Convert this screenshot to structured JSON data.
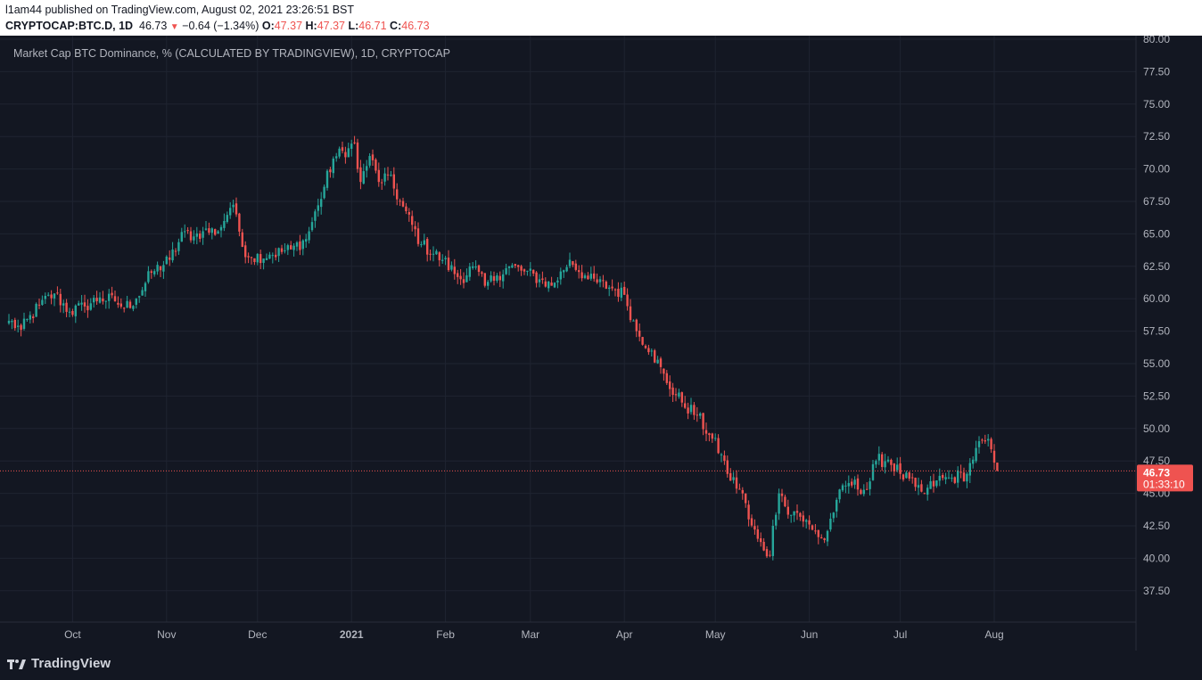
{
  "header": {
    "user": "l1am44",
    "published_text": " published on TradingView.com, August 02, 2021 23:26:51 BST",
    "symbol": "CRYPTOCAP:BTC.D, 1D",
    "last": "46.73",
    "change_arrow": "▼",
    "change": "−0.64 (−1.34%)",
    "o_label": "O:",
    "o_value": "47.37",
    "h_label": "H:",
    "h_value": "47.37",
    "l_label": "L:",
    "l_value": "46.71",
    "c_label": "C:",
    "c_value": "46.73"
  },
  "footer": {
    "brand": "TradingView"
  },
  "colors": {
    "up": "#26a69a",
    "down": "#ef5350",
    "bg": "#131722",
    "grid": "#1f2431",
    "text": "#b2b5be"
  },
  "chart_data": {
    "type": "candlestick",
    "title": "Market Cap BTC Dominance, % (CALCULATED BY TRADINGVIEW), 1D, CRYPTOCAP",
    "xlabel": "",
    "ylabel": "",
    "ylim": [
      35.0,
      80.0
    ],
    "y_ticks": [
      "37.50",
      "40.00",
      "42.50",
      "45.00",
      "47.50",
      "50.00",
      "52.50",
      "55.00",
      "57.50",
      "60.00",
      "62.50",
      "65.00",
      "67.50",
      "70.00",
      "72.50",
      "75.00",
      "77.50",
      "80.00"
    ],
    "x_labels": [
      {
        "label": "Oct",
        "date": "2020-10-01"
      },
      {
        "label": "Nov",
        "date": "2020-11-01"
      },
      {
        "label": "Dec",
        "date": "2020-12-01"
      },
      {
        "label": "2021",
        "date": "2021-01-01"
      },
      {
        "label": "Feb",
        "date": "2021-02-01"
      },
      {
        "label": "Mar",
        "date": "2021-03-01"
      },
      {
        "label": "Apr",
        "date": "2021-04-01"
      },
      {
        "label": "May",
        "date": "2021-05-01"
      },
      {
        "label": "Jun",
        "date": "2021-06-01"
      },
      {
        "label": "Jul",
        "date": "2021-07-01"
      },
      {
        "label": "Aug",
        "date": "2021-08-01"
      }
    ],
    "start_date": "2020-09-10",
    "end_date": "2021-08-02",
    "anchors": [
      [
        "2020-09-10",
        58.3
      ],
      [
        "2020-09-14",
        57.6
      ],
      [
        "2020-09-20",
        59.5
      ],
      [
        "2020-09-25",
        60.4
      ],
      [
        "2020-09-30",
        59.0
      ],
      [
        "2020-10-05",
        59.4
      ],
      [
        "2020-10-10",
        60.1
      ],
      [
        "2020-10-15",
        59.8
      ],
      [
        "2020-10-18",
        59.3
      ],
      [
        "2020-10-22",
        60.0
      ],
      [
        "2020-10-27",
        62.0
      ],
      [
        "2020-11-02",
        63.0
      ],
      [
        "2020-11-07",
        65.2
      ],
      [
        "2020-11-10",
        64.8
      ],
      [
        "2020-11-13",
        65.2
      ],
      [
        "2020-11-18",
        65.2
      ],
      [
        "2020-11-22",
        67.0
      ],
      [
        "2020-11-24",
        66.5
      ],
      [
        "2020-11-26",
        64.0
      ],
      [
        "2020-11-29",
        63.2
      ],
      [
        "2020-12-05",
        63.4
      ],
      [
        "2020-12-12",
        63.8
      ],
      [
        "2020-12-17",
        64.6
      ],
      [
        "2020-12-21",
        67.2
      ],
      [
        "2020-12-26",
        70.8
      ],
      [
        "2020-12-31",
        71.6
      ],
      [
        "2021-01-02",
        72.0
      ],
      [
        "2021-01-03",
        70.0
      ],
      [
        "2021-01-04",
        69.0
      ],
      [
        "2021-01-07",
        71.0
      ],
      [
        "2021-01-10",
        69.0
      ],
      [
        "2021-01-13",
        69.5
      ],
      [
        "2021-01-17",
        67.5
      ],
      [
        "2021-01-24",
        64.2
      ],
      [
        "2021-01-31",
        63.0
      ],
      [
        "2021-02-06",
        61.5
      ],
      [
        "2021-02-10",
        62.5
      ],
      [
        "2021-02-14",
        61.0
      ],
      [
        "2021-02-18",
        61.8
      ],
      [
        "2021-02-22",
        62.5
      ],
      [
        "2021-02-27",
        62.1
      ],
      [
        "2021-03-04",
        61.5
      ],
      [
        "2021-03-08",
        61.0
      ],
      [
        "2021-03-12",
        62.2
      ],
      [
        "2021-03-14",
        63.0
      ],
      [
        "2021-03-20",
        61.5
      ],
      [
        "2021-03-28",
        60.8
      ],
      [
        "2021-04-01",
        60.3
      ],
      [
        "2021-04-05",
        57.5
      ],
      [
        "2021-04-10",
        56.0
      ],
      [
        "2021-04-15",
        53.5
      ],
      [
        "2021-04-20",
        52.0
      ],
      [
        "2021-04-25",
        51.0
      ],
      [
        "2021-04-29",
        49.5
      ],
      [
        "2021-05-03",
        48.0
      ],
      [
        "2021-05-05",
        46.5
      ],
      [
        "2021-05-10",
        45.0
      ],
      [
        "2021-05-12",
        43.0
      ],
      [
        "2021-05-15",
        41.5
      ],
      [
        "2021-05-17",
        40.6
      ],
      [
        "2021-05-19",
        40.2
      ],
      [
        "2021-05-20",
        42.5
      ],
      [
        "2021-05-22",
        45.0
      ],
      [
        "2021-05-24",
        44.0
      ],
      [
        "2021-05-28",
        43.5
      ],
      [
        "2021-06-02",
        42.2
      ],
      [
        "2021-06-06",
        41.4
      ],
      [
        "2021-06-10",
        44.5
      ],
      [
        "2021-06-14",
        45.8
      ],
      [
        "2021-06-20",
        45.3
      ],
      [
        "2021-06-23",
        47.5
      ],
      [
        "2021-06-27",
        47.6
      ],
      [
        "2021-07-01",
        46.5
      ],
      [
        "2021-07-06",
        45.5
      ],
      [
        "2021-07-09",
        45.0
      ],
      [
        "2021-07-13",
        46.0
      ],
      [
        "2021-07-18",
        46.2
      ],
      [
        "2021-07-23",
        46.5
      ],
      [
        "2021-07-26",
        48.5
      ],
      [
        "2021-07-29",
        49.0
      ],
      [
        "2021-07-31",
        48.4
      ],
      [
        "2021-08-01",
        47.37
      ],
      [
        "2021-08-02",
        46.73
      ]
    ],
    "last_price": "46.73",
    "countdown": "01:33:10"
  }
}
